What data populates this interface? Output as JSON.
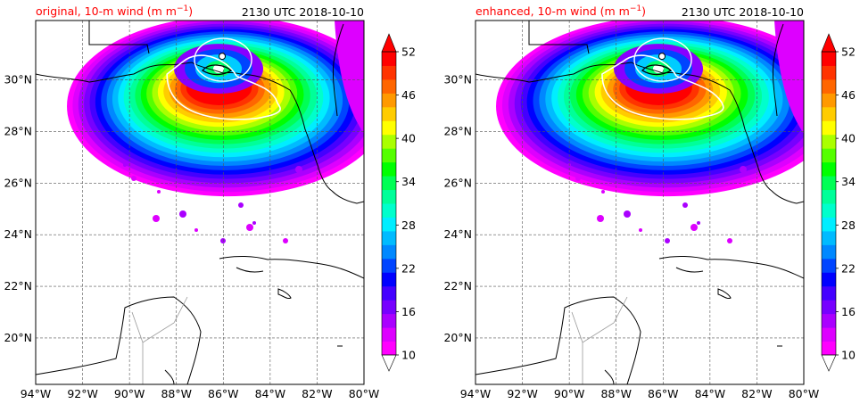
{
  "chart_data": [
    {
      "type": "heatmap",
      "title_left": "original, 10-m wind (m m",
      "title_left_sup": "−1",
      "title_left_end": ")",
      "title_right": "2130 UTC 2018-10-10",
      "x_ticks": [
        "94°W",
        "92°W",
        "90°W",
        "88°W",
        "86°W",
        "84°W",
        "82°W",
        "80°W"
      ],
      "y_ticks": [
        "20°N",
        "22°N",
        "24°N",
        "26°N",
        "28°N",
        "30°N"
      ],
      "xlim": [
        -94,
        -80
      ],
      "ylim": [
        18.2,
        32.3
      ],
      "grid": true,
      "colorbar": {
        "ticks": [
          "10",
          "16",
          "22",
          "28",
          "34",
          "40",
          "46",
          "52"
        ],
        "min": 10,
        "max": 52,
        "extend": "both"
      },
      "storm_center": [
        -86.2,
        30.5
      ],
      "white_contour_rx": 2.2,
      "wind_max": 52
    },
    {
      "type": "heatmap",
      "title_left": "enhanced, 10-m wind (m m",
      "title_left_sup": "−1",
      "title_left_end": ")",
      "title_right": "2130 UTC 2018-10-10",
      "x_ticks": [
        "94°W",
        "92°W",
        "90°W",
        "88°W",
        "86°W",
        "84°W",
        "82°W",
        "80°W"
      ],
      "y_ticks": [
        "20°N",
        "22°N",
        "24°N",
        "26°N",
        "28°N",
        "30°N"
      ],
      "xlim": [
        -94,
        -80
      ],
      "ylim": [
        18.2,
        32.3
      ],
      "grid": true,
      "colorbar": {
        "ticks": [
          "10",
          "16",
          "22",
          "28",
          "34",
          "40",
          "46",
          "52"
        ],
        "min": 10,
        "max": 52,
        "extend": "both"
      },
      "storm_center": [
        -86.2,
        30.5
      ],
      "white_contour_rx": 2.4,
      "wind_max": 52
    }
  ],
  "colors": {
    "scale": [
      "#ff00ff",
      "#dd00ff",
      "#aa00ff",
      "#7700ff",
      "#4400ff",
      "#0000ff",
      "#0044ff",
      "#0088ff",
      "#00bbff",
      "#00eeff",
      "#00ffcc",
      "#00ff99",
      "#00ff55",
      "#00ff00",
      "#55ff00",
      "#aaff00",
      "#ffff00",
      "#ffcc00",
      "#ff9900",
      "#ff6600",
      "#ff3300",
      "#ff0000"
    ]
  }
}
